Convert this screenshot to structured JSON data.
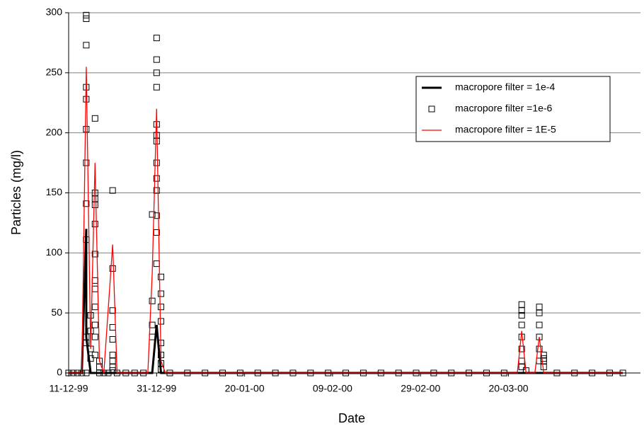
{
  "chart_data": {
    "type": "scatter",
    "xlabel": "Date",
    "ylabel": "Particles  (mg/l)",
    "xlim": [
      "1999-12-11",
      "2000-04-19"
    ],
    "xticks": [
      {
        "value": "1999-12-11",
        "label": "11-12-99"
      },
      {
        "value": "1999-12-31",
        "label": "31-12-99"
      },
      {
        "value": "2000-01-20",
        "label": "20-01-00"
      },
      {
        "value": "2000-02-09",
        "label": "09-02-00"
      },
      {
        "value": "2000-02-29",
        "label": "29-02-00"
      },
      {
        "value": "2000-03-20",
        "label": "20-03-00"
      }
    ],
    "ylim": [
      0,
      300
    ],
    "yticks": [
      0,
      50,
      100,
      150,
      200,
      250,
      300
    ],
    "grid": true,
    "legend": "upper right",
    "series": [
      {
        "name": "macropore filter = 1e-4",
        "style": "line",
        "color": "#000000",
        "x": [
          "1999-12-11",
          "1999-12-14",
          "1999-12-15",
          "1999-12-15",
          "1999-12-16",
          "1999-12-30",
          "1999-12-31",
          "2000-01-01",
          "2000-04-15"
        ],
        "values": [
          0,
          0,
          120,
          30,
          0,
          0,
          40,
          0,
          0
        ]
      },
      {
        "name": "macropore filter =1e-6",
        "style": "marker",
        "color": "#000000",
        "x": [
          "1999-12-11",
          "1999-12-12",
          "1999-12-13",
          "1999-12-14",
          "1999-12-15",
          "1999-12-15",
          "1999-12-15",
          "1999-12-15",
          "1999-12-15",
          "1999-12-15",
          "1999-12-15",
          "1999-12-15",
          "1999-12-15",
          "1999-12-15",
          "1999-12-15",
          "1999-12-15",
          "1999-12-16",
          "1999-12-16",
          "1999-12-16",
          "1999-12-16",
          "1999-12-17",
          "1999-12-17",
          "1999-12-17",
          "1999-12-17",
          "1999-12-17",
          "1999-12-17",
          "1999-12-17",
          "1999-12-17",
          "1999-12-17",
          "1999-12-17",
          "1999-12-17",
          "1999-12-17",
          "1999-12-18",
          "1999-12-18",
          "1999-12-18",
          "1999-12-19",
          "1999-12-20",
          "1999-12-21",
          "1999-12-21",
          "1999-12-21",
          "1999-12-21",
          "1999-12-21",
          "1999-12-21",
          "1999-12-21",
          "1999-12-21",
          "1999-12-21",
          "1999-12-22",
          "1999-12-24",
          "1999-12-26",
          "1999-12-28",
          "1999-12-30",
          "1999-12-30",
          "1999-12-30",
          "1999-12-30",
          "1999-12-31",
          "1999-12-31",
          "1999-12-31",
          "1999-12-31",
          "1999-12-31",
          "1999-12-31",
          "1999-12-31",
          "1999-12-31",
          "1999-12-31",
          "1999-12-31",
          "1999-12-31",
          "1999-12-31",
          "1999-12-31",
          "2000-01-01",
          "2000-01-01",
          "2000-01-01",
          "2000-01-01",
          "2000-01-01",
          "2000-01-01",
          "2000-01-01",
          "2000-01-01",
          "2000-01-03",
          "2000-01-07",
          "2000-01-11",
          "2000-01-15",
          "2000-01-19",
          "2000-01-23",
          "2000-01-27",
          "2000-01-31",
          "2000-02-04",
          "2000-02-08",
          "2000-02-12",
          "2000-02-16",
          "2000-02-20",
          "2000-02-24",
          "2000-02-28",
          "2000-03-03",
          "2000-03-07",
          "2000-03-11",
          "2000-03-15",
          "2000-03-19",
          "2000-03-23",
          "2000-03-23",
          "2000-03-23",
          "2000-03-23",
          "2000-03-23",
          "2000-03-23",
          "2000-03-23",
          "2000-03-23",
          "2000-03-24",
          "2000-03-27",
          "2000-03-27",
          "2000-03-27",
          "2000-03-27",
          "2000-03-27",
          "2000-03-27",
          "2000-03-28",
          "2000-03-28",
          "2000-03-28",
          "2000-03-28",
          "2000-03-31",
          "2000-04-04",
          "2000-04-08",
          "2000-04-12",
          "2000-04-15"
        ],
        "values": [
          0,
          0,
          0,
          0,
          0,
          111,
          141,
          175,
          203,
          228,
          238,
          273,
          295,
          298,
          30,
          25,
          48,
          35,
          20,
          12,
          150,
          145,
          140,
          124,
          99,
          212,
          77,
          70,
          55,
          40,
          30,
          15,
          10,
          5,
          0,
          0,
          0,
          152,
          87,
          52,
          38,
          28,
          15,
          10,
          5,
          2,
          0,
          0,
          0,
          0,
          132,
          60,
          40,
          30,
          279,
          261,
          250,
          238,
          207,
          198,
          193,
          175,
          162,
          152,
          131,
          117,
          91,
          80,
          66,
          55,
          43,
          25,
          15,
          8,
          3,
          0,
          0,
          0,
          0,
          0,
          0,
          0,
          0,
          0,
          0,
          0,
          0,
          0,
          0,
          0,
          0,
          0,
          0,
          0,
          0,
          57,
          52,
          48,
          40,
          30,
          20,
          10,
          5,
          2,
          55,
          50,
          40,
          30,
          20,
          10,
          15,
          12,
          10,
          5,
          0,
          0,
          0,
          0,
          0
        ]
      },
      {
        "name": "macropore filter = 1E-5",
        "style": "line",
        "color": "#ff0000",
        "x": [
          "1999-12-11",
          "1999-12-14",
          "1999-12-15",
          "1999-12-16",
          "1999-12-17",
          "1999-12-18",
          "1999-12-19",
          "1999-12-21",
          "1999-12-22",
          "1999-12-29",
          "1999-12-30",
          "1999-12-31",
          "2000-01-01",
          "2000-01-02",
          "2000-03-22",
          "2000-03-23",
          "2000-03-24",
          "2000-03-26",
          "2000-03-27",
          "2000-03-28",
          "2000-04-15"
        ],
        "values": [
          0,
          0,
          255,
          20,
          175,
          10,
          0,
          107,
          0,
          0,
          83,
          220,
          10,
          0,
          0,
          35,
          0,
          0,
          30,
          0,
          0
        ]
      }
    ]
  }
}
